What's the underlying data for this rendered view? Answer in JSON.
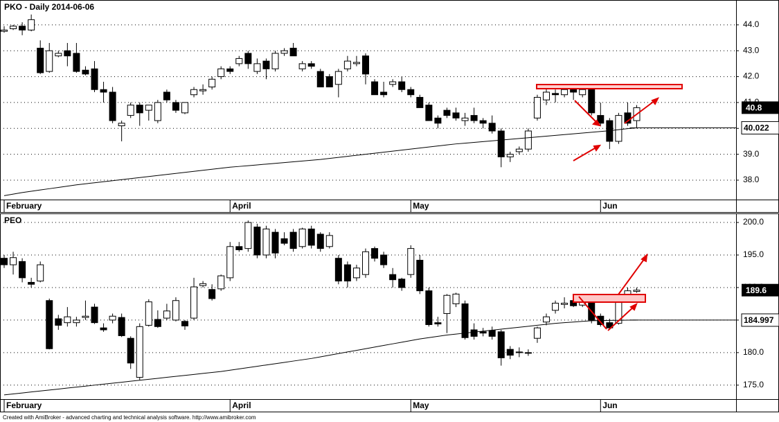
{
  "chart_data": [
    {
      "type": "candlestick",
      "title": "PKO - Daily 2014-06-06",
      "categories": [
        "February",
        null,
        null,
        null,
        null,
        null,
        null,
        null,
        null,
        null,
        null,
        null,
        null,
        null,
        null,
        null,
        null,
        null,
        null,
        null,
        null,
        null,
        null,
        null,
        null,
        "April",
        null,
        null,
        null,
        null,
        null,
        null,
        null,
        null,
        null,
        null,
        null,
        null,
        null,
        null,
        null,
        null,
        null,
        null,
        null,
        "May",
        null,
        null,
        null,
        null,
        null,
        null,
        null,
        null,
        null,
        null,
        null,
        null,
        null,
        null,
        null,
        null,
        null,
        null,
        null,
        null,
        "Jun",
        null,
        null,
        null,
        null
      ],
      "candles": [
        [
          43.75,
          43.95,
          43.7,
          43.8
        ],
        [
          43.85,
          44.0,
          43.8,
          43.95
        ],
        [
          43.95,
          44.1,
          43.6,
          43.8
        ],
        [
          43.8,
          44.4,
          43.75,
          44.2
        ],
        [
          43.1,
          43.4,
          42.1,
          42.15
        ],
        [
          42.2,
          43.3,
          42.15,
          43.0
        ],
        [
          42.8,
          43.0,
          42.75,
          42.9
        ],
        [
          43.0,
          43.3,
          42.4,
          42.8
        ],
        [
          42.9,
          43.3,
          42.15,
          42.2
        ],
        [
          42.25,
          42.4,
          42.05,
          42.1
        ],
        [
          42.3,
          42.6,
          41.4,
          41.5
        ],
        [
          41.5,
          41.8,
          41.0,
          41.4
        ],
        [
          41.4,
          41.6,
          40.2,
          40.3
        ],
        [
          40.1,
          40.3,
          39.5,
          40.2
        ],
        [
          40.5,
          41.0,
          40.4,
          40.9
        ],
        [
          40.9,
          41.0,
          40.1,
          40.6
        ],
        [
          40.7,
          40.9,
          40.3,
          40.9
        ],
        [
          40.3,
          41.1,
          40.2,
          41.0
        ],
        [
          41.4,
          41.5,
          41.0,
          41.1
        ],
        [
          41.0,
          41.1,
          40.6,
          40.7
        ],
        [
          40.6,
          41.0,
          40.55,
          41.0
        ],
        [
          41.3,
          41.6,
          41.2,
          41.5
        ],
        [
          41.45,
          41.7,
          41.3,
          41.5
        ],
        [
          41.6,
          42.0,
          41.5,
          41.9
        ],
        [
          42.0,
          42.4,
          41.9,
          42.3
        ],
        [
          42.3,
          42.4,
          42.1,
          42.2
        ],
        [
          42.5,
          42.8,
          42.4,
          42.7
        ],
        [
          42.9,
          43.0,
          42.3,
          42.5
        ],
        [
          42.2,
          42.7,
          42.1,
          42.5
        ],
        [
          42.6,
          42.7,
          41.9,
          42.3
        ],
        [
          42.3,
          43.0,
          42.2,
          42.9
        ],
        [
          42.9,
          43.1,
          42.8,
          43.0
        ],
        [
          43.1,
          43.3,
          42.8,
          42.8
        ],
        [
          42.3,
          42.6,
          42.2,
          42.5
        ],
        [
          42.5,
          42.6,
          42.3,
          42.4
        ],
        [
          42.2,
          42.3,
          41.6,
          41.6
        ],
        [
          42.0,
          42.1,
          41.6,
          41.6
        ],
        [
          41.7,
          42.3,
          41.2,
          42.2
        ],
        [
          42.3,
          42.8,
          42.2,
          42.6
        ],
        [
          42.5,
          42.8,
          42.4,
          42.55
        ],
        [
          42.8,
          42.9,
          41.7,
          42.1
        ],
        [
          41.8,
          41.9,
          41.3,
          41.3
        ],
        [
          41.4,
          41.8,
          41.2,
          41.3
        ],
        [
          41.7,
          41.9,
          41.6,
          41.8
        ],
        [
          41.8,
          42.0,
          41.4,
          41.5
        ],
        [
          41.5,
          41.6,
          41.2,
          41.3
        ],
        [
          41.2,
          41.3,
          40.8,
          40.8
        ],
        [
          40.9,
          41.0,
          40.3,
          40.3
        ],
        [
          40.4,
          40.5,
          40.0,
          40.2
        ],
        [
          40.7,
          40.8,
          40.4,
          40.5
        ],
        [
          40.6,
          40.8,
          40.3,
          40.4
        ],
        [
          40.3,
          40.6,
          40.1,
          40.4
        ],
        [
          40.5,
          40.8,
          40.2,
          40.3
        ],
        [
          40.3,
          40.4,
          40.0,
          40.2
        ],
        [
          40.2,
          40.5,
          39.8,
          39.9
        ],
        [
          39.9,
          40.0,
          38.5,
          38.9
        ],
        [
          38.9,
          39.1,
          38.7,
          39.0
        ],
        [
          39.1,
          39.3,
          39.0,
          39.2
        ],
        [
          39.2,
          40.0,
          39.1,
          39.9
        ],
        [
          40.4,
          41.3,
          40.3,
          41.2
        ],
        [
          41.1,
          41.6,
          40.9,
          41.4
        ],
        [
          41.35,
          41.5,
          41.0,
          41.3
        ],
        [
          41.3,
          41.6,
          41.2,
          41.5
        ],
        [
          41.5,
          41.6,
          41.1,
          41.4
        ],
        [
          41.3,
          41.6,
          41.2,
          41.5
        ],
        [
          41.6,
          41.7,
          40.5,
          40.6
        ],
        [
          40.5,
          41.0,
          40.1,
          40.2
        ],
        [
          40.3,
          40.4,
          39.2,
          39.5
        ],
        [
          39.5,
          40.6,
          39.4,
          40.5
        ],
        [
          40.6,
          41.0,
          40.1,
          40.2
        ],
        [
          40.3,
          40.9,
          40.0,
          40.8
        ]
      ],
      "ma": {
        "values": [
          37.4,
          37.46,
          37.52,
          37.57,
          37.62,
          37.67,
          37.72,
          37.77,
          37.82,
          37.86,
          37.9,
          37.94,
          37.98,
          38.02,
          38.06,
          38.1,
          38.14,
          38.18,
          38.22,
          38.26,
          38.3,
          38.34,
          38.38,
          38.42,
          38.46,
          38.5,
          38.53,
          38.56,
          38.59,
          38.62,
          38.65,
          38.68,
          38.71,
          38.74,
          38.77,
          38.8,
          38.84,
          38.88,
          38.92,
          38.96,
          39.0,
          39.04,
          39.08,
          39.12,
          39.16,
          39.2,
          39.24,
          39.28,
          39.32,
          39.36,
          39.4,
          39.43,
          39.46,
          39.49,
          39.52,
          39.55,
          39.58,
          39.61,
          39.64,
          39.67,
          39.7,
          39.73,
          39.76,
          39.79,
          39.82,
          39.85,
          39.88,
          39.91,
          39.95,
          39.99,
          40.022
        ],
        "color": "#000000"
      },
      "up_color": "#ffffff",
      "down_color": "#000000",
      "ylim": [
        37.25,
        44.96
      ],
      "yticks": [
        {
          "value": 38,
          "label": "38.0"
        },
        {
          "value": 39,
          "label": "39.0"
        },
        {
          "value": 40,
          "label": "40.0"
        },
        {
          "value": 41,
          "label": "41.0"
        },
        {
          "value": 42,
          "label": "42.0"
        },
        {
          "value": 43,
          "label": "43.0"
        },
        {
          "value": 44,
          "label": "44.0"
        }
      ],
      "grid": true
    },
    {
      "type": "candlestick",
      "title": "PEO",
      "categories": [
        "February",
        null,
        null,
        null,
        null,
        null,
        null,
        null,
        null,
        null,
        null,
        null,
        null,
        null,
        null,
        null,
        null,
        null,
        null,
        null,
        null,
        null,
        null,
        null,
        null,
        "April",
        null,
        null,
        null,
        null,
        null,
        null,
        null,
        null,
        null,
        null,
        null,
        null,
        null,
        null,
        null,
        null,
        null,
        null,
        null,
        "May",
        null,
        null,
        null,
        null,
        null,
        null,
        null,
        null,
        null,
        null,
        null,
        null,
        null,
        null,
        null,
        null,
        null,
        null,
        null,
        null,
        "Jun",
        null,
        null,
        null,
        null
      ],
      "candles": [
        [
          194.5,
          195.0,
          193.0,
          193.5
        ],
        [
          193.5,
          195.5,
          192.0,
          194.6
        ],
        [
          194.0,
          194.5,
          190.8,
          191.5
        ],
        [
          190.8,
          191.5,
          190.0,
          190.5
        ],
        [
          191.0,
          194.0,
          190.8,
          193.5
        ],
        [
          188.0,
          188.3,
          180.5,
          180.6
        ],
        [
          185.2,
          185.8,
          183.5,
          184.2
        ],
        [
          184.6,
          187.0,
          184.0,
          185.5
        ],
        [
          184.6,
          185.5,
          184.0,
          185.0
        ],
        [
          185.4,
          188.0,
          185.0,
          185.6
        ],
        [
          187.0,
          187.5,
          184.4,
          184.6
        ],
        [
          183.8,
          184.5,
          183.2,
          183.5
        ],
        [
          185.0,
          186.0,
          184.5,
          185.6
        ],
        [
          185.4,
          186.0,
          182.4,
          182.6
        ],
        [
          182.2,
          182.5,
          177.5,
          178.4
        ],
        [
          176.2,
          184.5,
          175.8,
          184.0
        ],
        [
          184.2,
          188.2,
          184.0,
          187.8
        ],
        [
          185.1,
          186.5,
          183.8,
          184.0
        ],
        [
          185.3,
          187.5,
          185.0,
          186.4
        ],
        [
          185.0,
          188.5,
          184.8,
          188.0
        ],
        [
          184.8,
          185.0,
          183.5,
          184.1
        ],
        [
          185.3,
          191.5,
          185.0,
          190.1
        ],
        [
          190.3,
          191.0,
          190.0,
          190.6
        ],
        [
          189.7,
          190.5,
          188.0,
          188.3
        ],
        [
          189.8,
          192.0,
          189.5,
          191.8
        ],
        [
          191.5,
          197.0,
          191.0,
          196.3
        ],
        [
          196.3,
          197.0,
          195.5,
          195.8
        ],
        [
          196.0,
          200.3,
          195.5,
          200.0
        ],
        [
          199.3,
          199.8,
          194.5,
          195.0
        ],
        [
          195.0,
          199.5,
          194.5,
          199.0
        ],
        [
          198.5,
          199.0,
          194.5,
          195.3
        ],
        [
          197.5,
          198.5,
          196.5,
          196.8
        ],
        [
          198.5,
          199.0,
          195.5,
          196.0
        ],
        [
          196.3,
          199.2,
          196.0,
          199.0
        ],
        [
          199.0,
          199.5,
          196.0,
          196.5
        ],
        [
          198.2,
          198.5,
          195.5,
          196.0
        ],
        [
          196.3,
          198.5,
          196.0,
          198.0
        ],
        [
          194.5,
          195.0,
          190.5,
          191.0
        ],
        [
          193.5,
          194.0,
          190.0,
          191.0
        ],
        [
          191.5,
          193.5,
          191.0,
          193.0
        ],
        [
          192.0,
          196.0,
          191.5,
          195.5
        ],
        [
          196.0,
          196.3,
          194.0,
          194.5
        ],
        [
          195.0,
          195.5,
          193.0,
          193.5
        ],
        [
          192.0,
          193.0,
          190.0,
          191.2
        ],
        [
          191.3,
          191.5,
          189.5,
          190.0
        ],
        [
          192.0,
          196.5,
          191.5,
          196.0
        ],
        [
          194.2,
          195.0,
          189.0,
          189.5
        ],
        [
          189.5,
          190.0,
          184.0,
          184.3
        ],
        [
          184.6,
          185.5,
          184.0,
          184.4
        ],
        [
          186.0,
          189.0,
          183.0,
          188.8
        ],
        [
          187.5,
          189.2,
          187.0,
          189.0
        ],
        [
          187.5,
          188.0,
          182.0,
          182.3
        ],
        [
          183.5,
          184.5,
          182.0,
          182.5
        ],
        [
          183.2,
          183.8,
          182.5,
          183.0
        ],
        [
          183.4,
          184.0,
          182.0,
          182.5
        ],
        [
          183.2,
          183.5,
          178.0,
          179.2
        ],
        [
          180.5,
          181.0,
          179.0,
          179.6
        ],
        [
          180.0,
          180.8,
          179.3,
          180.1
        ],
        [
          180.0,
          180.5,
          179.5,
          179.9
        ],
        [
          182.2,
          184.0,
          181.5,
          183.8
        ],
        [
          184.7,
          186.0,
          184.2,
          185.5
        ],
        [
          186.5,
          188.0,
          186.0,
          187.6
        ],
        [
          187.4,
          188.5,
          186.8,
          187.6
        ],
        [
          188.0,
          188.5,
          187.0,
          187.2
        ],
        [
          187.3,
          188.8,
          187.0,
          188.5
        ],
        [
          188.5,
          189.0,
          184.5,
          185.0
        ],
        [
          185.6,
          186.0,
          184.0,
          184.3
        ],
        [
          184.6,
          185.2,
          183.5,
          183.8
        ],
        [
          184.5,
          188.0,
          184.3,
          187.7
        ],
        [
          188.0,
          190.0,
          187.8,
          189.5
        ],
        [
          189.4,
          190.0,
          189.2,
          189.6
        ]
      ],
      "ma": {
        "values": [
          173.5,
          173.65,
          173.8,
          173.95,
          174.1,
          174.25,
          174.4,
          174.55,
          174.7,
          174.85,
          175.0,
          175.15,
          175.3,
          175.45,
          175.6,
          175.75,
          175.9,
          176.05,
          176.2,
          176.35,
          176.5,
          176.65,
          176.8,
          176.95,
          177.1,
          177.3,
          177.5,
          177.7,
          177.9,
          178.1,
          178.3,
          178.5,
          178.7,
          178.9,
          179.1,
          179.35,
          179.6,
          179.85,
          180.1,
          180.35,
          180.6,
          180.85,
          181.1,
          181.35,
          181.6,
          181.85,
          182.1,
          182.3,
          182.5,
          182.7,
          182.85,
          183.0,
          183.15,
          183.3,
          183.45,
          183.6,
          183.75,
          183.9,
          184.05,
          184.2,
          184.35,
          184.5,
          184.6,
          184.7,
          184.8,
          184.9,
          184.93,
          184.95,
          184.97,
          184.985,
          184.997
        ],
        "color": "#000000"
      },
      "up_color": "#ffffff",
      "down_color": "#000000",
      "ylim": [
        172.85,
        201.39
      ],
      "yticks": [
        {
          "value": 175,
          "label": "175.0"
        },
        {
          "value": 180,
          "label": "180.0"
        },
        {
          "value": 185,
          "label": "185.0"
        },
        {
          "value": 190,
          "label": "190.0"
        },
        {
          "value": 195,
          "label": "195.0"
        },
        {
          "value": 200,
          "label": "200.0"
        }
      ],
      "grid": true
    }
  ],
  "footer": "Created with AmiBroker - advanced charting and technical analysis software. http://www.amibroker.com"
}
